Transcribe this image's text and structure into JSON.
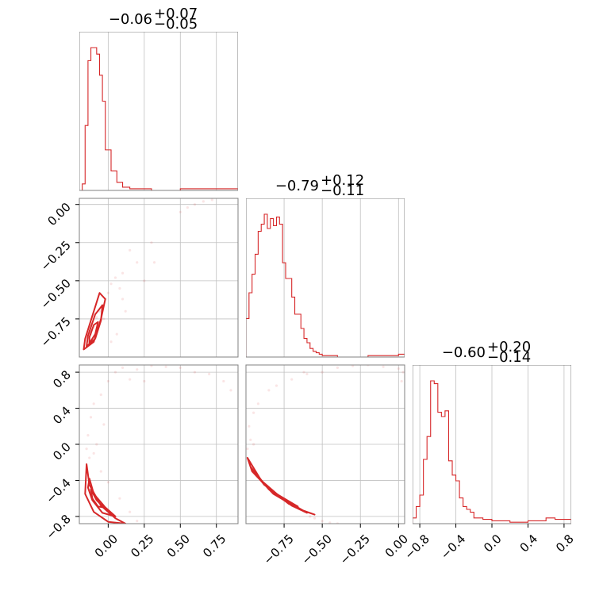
{
  "chart_data": {
    "type": "corner",
    "colors": {
      "line": "#d62728",
      "frame": "#808080",
      "grid": "#c0c0c0"
    },
    "grid": true,
    "parameters": [
      {
        "title": {
          "median": "−0.06",
          "plus": "+0.07",
          "minus": "−0.05"
        },
        "range": [
          -0.2,
          0.9
        ]
      },
      {
        "title": {
          "median": "−0.79",
          "plus": "+0.12",
          "minus": "−0.11"
        },
        "range": [
          -1.0,
          0.04
        ]
      },
      {
        "title": {
          "median": "−0.60",
          "plus": "+0.20",
          "minus": "−0.14"
        },
        "range": [
          -0.88,
          0.88
        ]
      }
    ],
    "ticks": [
      {
        "values": [
          0.0,
          0.25,
          0.5,
          0.75
        ],
        "labels": [
          "0.00",
          "0.25",
          "0.50",
          "0.75"
        ]
      },
      {
        "values": [
          -0.75,
          -0.5,
          -0.25,
          0.0
        ],
        "labels": [
          "−0.75",
          "−0.50",
          "−0.25",
          "0.00"
        ]
      },
      {
        "values": [
          -0.8,
          -0.4,
          0.0,
          0.4,
          0.8
        ],
        "labels": [
          "−0.8",
          "−0.4",
          "0.0",
          "0.4",
          "0.8"
        ]
      }
    ],
    "row_tick_labels": [
      null,
      {
        "values": [
          0.0,
          -0.25,
          -0.5,
          -0.75
        ],
        "labels": [
          "0.00",
          "−0.25",
          "−0.50",
          "−0.75"
        ]
      },
      {
        "values": [
          0.8,
          0.4,
          0.0,
          -0.4,
          -0.8
        ],
        "labels": [
          "0.8",
          "0.4",
          "0.0",
          "−0.4",
          "−0.8"
        ]
      }
    ],
    "histograms": [
      {
        "bin_edges": [
          -0.18,
          -0.16,
          -0.14,
          -0.12,
          -0.1,
          -0.08,
          -0.06,
          -0.04,
          -0.02,
          0.0,
          0.02,
          0.04,
          0.06,
          0.08,
          0.1,
          0.15,
          0.2,
          0.3,
          0.5,
          0.6,
          0.7,
          0.8,
          0.9
        ],
        "counts": [
          4,
          40,
          80,
          88,
          88,
          84,
          71,
          55,
          25,
          25,
          12,
          12,
          5,
          5,
          2,
          1,
          1,
          0,
          1,
          1,
          1,
          1
        ]
      },
      {
        "bin_edges": [
          -1.0,
          -0.98,
          -0.96,
          -0.94,
          -0.92,
          -0.9,
          -0.88,
          -0.86,
          -0.84,
          -0.82,
          -0.8,
          -0.78,
          -0.76,
          -0.74,
          -0.72,
          -0.7,
          -0.68,
          -0.66,
          -0.64,
          -0.62,
          -0.6,
          -0.58,
          -0.56,
          -0.54,
          -0.52,
          -0.5,
          -0.4,
          -0.2,
          0.0,
          0.04
        ],
        "counts": [
          27,
          45,
          58,
          72,
          88,
          93,
          100,
          90,
          97,
          92,
          98,
          93,
          66,
          55,
          55,
          42,
          30,
          30,
          20,
          13,
          10,
          6,
          4,
          3,
          2,
          1,
          0,
          1,
          2
        ]
      },
      {
        "bin_edges": [
          -0.88,
          -0.84,
          -0.8,
          -0.76,
          -0.72,
          -0.68,
          -0.64,
          -0.6,
          -0.56,
          -0.52,
          -0.48,
          -0.44,
          -0.4,
          -0.36,
          -0.32,
          -0.28,
          -0.24,
          -0.2,
          -0.1,
          0.0,
          0.2,
          0.4,
          0.6,
          0.7,
          0.8,
          0.88
        ],
        "counts": [
          4,
          12,
          20,
          45,
          61,
          100,
          98,
          78,
          75,
          79,
          44,
          34,
          30,
          18,
          12,
          10,
          8,
          4,
          3,
          2,
          1,
          2,
          4,
          3,
          3
        ]
      }
    ],
    "pairs": [
      {
        "row": 1,
        "col": 0,
        "contours": [
          [
            [
              -0.17,
              -0.95
            ],
            [
              -0.1,
              -0.9
            ],
            [
              -0.05,
              -0.75
            ],
            [
              -0.02,
              -0.62
            ],
            [
              -0.06,
              -0.58
            ],
            [
              -0.11,
              -0.73
            ],
            [
              -0.16,
              -0.88
            ]
          ],
          [
            [
              -0.15,
              -0.93
            ],
            [
              -0.09,
              -0.88
            ],
            [
              -0.05,
              -0.76
            ],
            [
              -0.04,
              -0.66
            ],
            [
              -0.09,
              -0.72
            ],
            [
              -0.14,
              -0.86
            ]
          ],
          [
            [
              -0.13,
              -0.91
            ],
            [
              -0.09,
              -0.85
            ],
            [
              -0.07,
              -0.77
            ],
            [
              -0.1,
              -0.79
            ],
            [
              -0.13,
              -0.87
            ]
          ]
        ],
        "points": [
          [
            0.55,
            -0.02
          ],
          [
            0.6,
            0.0
          ],
          [
            0.66,
            0.02
          ],
          [
            0.72,
            0.03
          ],
          [
            0.8,
            0.05
          ],
          [
            0.5,
            -0.05
          ],
          [
            0.3,
            -0.25
          ],
          [
            0.15,
            -0.3
          ],
          [
            0.2,
            -0.38
          ],
          [
            0.05,
            -0.48
          ],
          [
            0.02,
            -0.52
          ],
          [
            0.0,
            -0.58
          ],
          [
            -0.02,
            -0.62
          ],
          [
            -0.04,
            -0.66
          ],
          [
            -0.06,
            -0.7
          ],
          [
            -0.08,
            -0.74
          ],
          [
            -0.1,
            -0.8
          ],
          [
            -0.12,
            -0.85
          ],
          [
            -0.14,
            -0.9
          ],
          [
            0.08,
            -0.55
          ],
          [
            0.1,
            -0.62
          ],
          [
            0.12,
            -0.7
          ],
          [
            -0.03,
            -0.75
          ],
          [
            0.06,
            -0.85
          ],
          [
            0.02,
            -0.9
          ],
          [
            0.32,
            -0.38
          ],
          [
            0.25,
            -0.5
          ],
          [
            0.1,
            -0.45
          ]
        ]
      },
      {
        "row": 2,
        "col": 0,
        "contours": [
          [
            [
              -0.15,
              -0.22
            ],
            [
              -0.13,
              -0.45
            ],
            [
              -0.05,
              -0.68
            ],
            [
              0.05,
              -0.82
            ],
            [
              0.12,
              -0.88
            ],
            [
              0.0,
              -0.86
            ],
            [
              -0.1,
              -0.75
            ],
            [
              -0.16,
              -0.55
            ]
          ],
          [
            [
              -0.13,
              -0.38
            ],
            [
              -0.1,
              -0.55
            ],
            [
              -0.02,
              -0.7
            ],
            [
              0.05,
              -0.8
            ],
            [
              -0.04,
              -0.76
            ],
            [
              -0.11,
              -0.62
            ],
            [
              -0.14,
              -0.48
            ]
          ],
          [
            [
              -0.12,
              -0.5
            ],
            [
              -0.08,
              -0.62
            ],
            [
              -0.03,
              -0.7
            ],
            [
              -0.07,
              -0.69
            ],
            [
              -0.11,
              -0.6
            ]
          ]
        ],
        "points": [
          [
            0.05,
            0.8
          ],
          [
            0.1,
            0.85
          ],
          [
            0.2,
            0.83
          ],
          [
            0.3,
            0.87
          ],
          [
            0.4,
            0.86
          ],
          [
            0.5,
            0.85
          ],
          [
            0.6,
            0.8
          ],
          [
            0.7,
            0.78
          ],
          [
            0.8,
            0.7
          ],
          [
            0.85,
            0.6
          ],
          [
            0.0,
            0.7
          ],
          [
            -0.05,
            0.55
          ],
          [
            -0.1,
            0.45
          ],
          [
            -0.12,
            0.3
          ],
          [
            -0.14,
            0.1
          ],
          [
            -0.15,
            -0.05
          ],
          [
            -0.13,
            -0.15
          ],
          [
            -0.1,
            -0.1
          ],
          [
            -0.08,
            0.0
          ],
          [
            -0.05,
            -0.3
          ],
          [
            0.0,
            -0.42
          ],
          [
            0.08,
            -0.6
          ],
          [
            0.15,
            -0.75
          ],
          [
            0.2,
            -0.85
          ],
          [
            -0.03,
            0.22
          ],
          [
            0.15,
            0.72
          ],
          [
            0.25,
            0.7
          ]
        ]
      },
      {
        "row": 2,
        "col": 1,
        "contours": [
          [
            [
              -0.99,
              -0.15
            ],
            [
              -0.9,
              -0.4
            ],
            [
              -0.75,
              -0.62
            ],
            [
              -0.62,
              -0.74
            ],
            [
              -0.55,
              -0.78
            ],
            [
              -0.65,
              -0.72
            ],
            [
              -0.82,
              -0.55
            ],
            [
              -0.96,
              -0.3
            ]
          ],
          [
            [
              -0.97,
              -0.25
            ],
            [
              -0.88,
              -0.45
            ],
            [
              -0.76,
              -0.6
            ],
            [
              -0.64,
              -0.72
            ],
            [
              -0.6,
              -0.76
            ],
            [
              -0.7,
              -0.68
            ],
            [
              -0.85,
              -0.5
            ]
          ],
          [
            [
              -0.8,
              -0.55
            ],
            [
              -0.7,
              -0.65
            ],
            [
              -0.66,
              -0.69
            ],
            [
              -0.72,
              -0.66
            ]
          ]
        ],
        "points": [
          [
            -0.98,
            0.2
          ],
          [
            -0.97,
            0.05
          ],
          [
            -0.92,
            0.45
          ],
          [
            -0.85,
            0.6
          ],
          [
            -0.8,
            0.65
          ],
          [
            -0.7,
            0.72
          ],
          [
            -0.6,
            0.78
          ],
          [
            -0.5,
            0.8
          ],
          [
            -0.4,
            0.85
          ],
          [
            -0.3,
            0.87
          ],
          [
            -0.2,
            0.88
          ],
          [
            -0.1,
            0.86
          ],
          [
            0.0,
            0.84
          ],
          [
            0.02,
            0.7
          ],
          [
            0.03,
            0.8
          ],
          [
            -0.95,
            0.0
          ],
          [
            -0.99,
            -0.05
          ],
          [
            -0.62,
            0.8
          ],
          [
            -0.55,
            -0.82
          ],
          [
            -0.5,
            -0.85
          ],
          [
            -0.45,
            -0.87
          ],
          [
            -0.4,
            -0.88
          ],
          [
            -0.58,
            -0.8
          ],
          [
            -0.95,
            0.35
          ]
        ]
      }
    ]
  }
}
